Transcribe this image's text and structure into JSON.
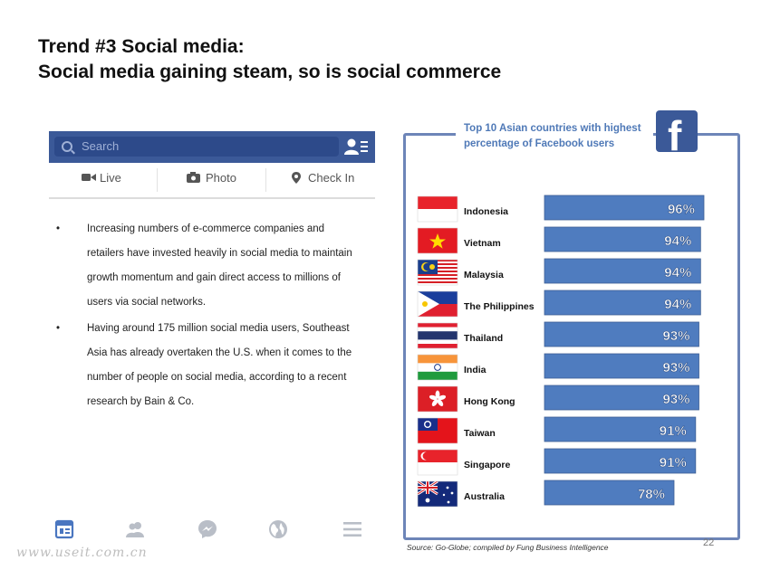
{
  "slide": {
    "title_line1": "Trend #3 Social media:",
    "title_line2": "Social media gaining steam, so is social commerce",
    "page_number": "22",
    "watermark": "www.useit.com.cn"
  },
  "facebook_ui": {
    "search_placeholder": "Search",
    "actions": [
      "Live",
      "Photo",
      "Check In"
    ],
    "brand_color": "#3b5998",
    "tab_icons": [
      "news-feed-icon",
      "friends-icon",
      "messenger-icon",
      "globe-icon",
      "menu-icon"
    ]
  },
  "bullets": [
    "Increasing numbers of e-commerce companies and retailers have invested heavily in social media to maintain growth momentum and gain direct access to millions of users via social networks.",
    "Having around 175 million social media users, Southeast Asia has already overtaken the U.S. when it comes to the number of people on social media, according to a recent research by Bain & Co."
  ],
  "chart_data": {
    "type": "bar",
    "orientation": "horizontal",
    "title": "Top 10 Asian countries with highest percentage of Facebook users",
    "categories": [
      "Indonesia",
      "Vietnam",
      "Malaysia",
      "The Philippines",
      "Thailand",
      "India",
      "Hong Kong",
      "Taiwan",
      "Singapore",
      "Australia"
    ],
    "values": [
      96,
      94,
      94,
      94,
      93,
      93,
      93,
      91,
      91,
      78
    ],
    "value_labels": [
      "96%",
      "94%",
      "94%",
      "94%",
      "93%",
      "93%",
      "93%",
      "91%",
      "91%",
      "78%"
    ],
    "bar_color": "#4f7cbf",
    "frame_color": "#6d85b8",
    "source": "Source: Go-Globe; compiled by Fung Business Intelligence"
  }
}
